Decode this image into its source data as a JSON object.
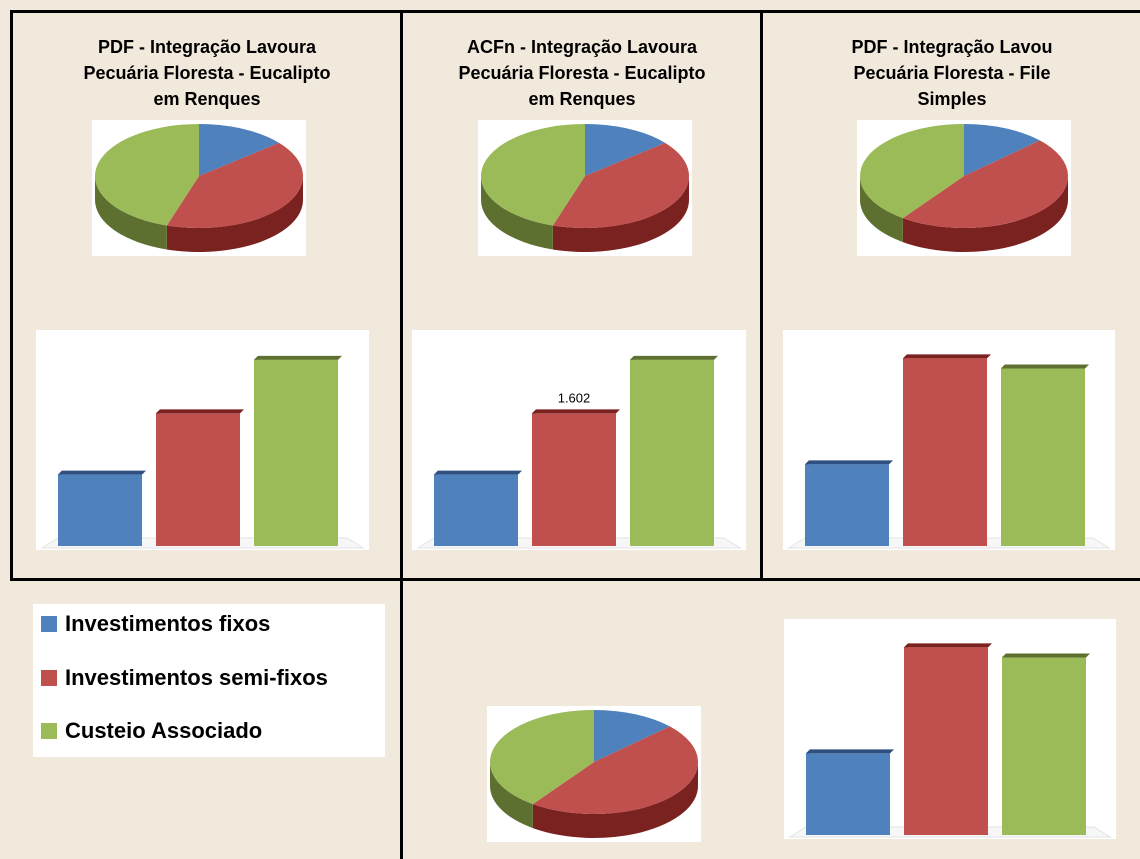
{
  "colors": {
    "blue": "#4f81bd",
    "blue_dark": "#2f4f7f",
    "red": "#c0504d",
    "red_dark": "#7a2220",
    "green": "#9bbb59",
    "green_dark": "#5d7030"
  },
  "legend": {
    "items": [
      {
        "label": "Investimentos fixos",
        "color": "#4f81bd"
      },
      {
        "label": "Investimentos semi-fixos",
        "color": "#c0504d"
      },
      {
        "label": "Custeio Associado",
        "color": "#9bbb59"
      }
    ]
  },
  "panels": [
    {
      "title_lines": [
        "PDF - Integração Lavoura",
        "Pecuária Floresta - Eucalipto",
        "em Renques"
      ]
    },
    {
      "title_lines": [
        "ACFn - Integração Lavoura",
        "Pecuária Floresta - Eucalipto",
        "em Renques"
      ]
    },
    {
      "title_lines": [
        "PDF - Integração Lavou",
        "Pecuária Floresta - File",
        "Simples"
      ]
    }
  ],
  "chart_data": [
    {
      "type": "pie",
      "panel": "pdf-renques",
      "series": [
        "Investimentos fixos",
        "Investimentos semi-fixos",
        "Custeio Associado"
      ],
      "values": [
        14,
        41,
        45
      ]
    },
    {
      "type": "bar",
      "panel": "pdf-renques",
      "categories": [
        "Investimentos fixos",
        "Investimentos semi-fixos",
        "Custeio Associado"
      ],
      "values": [
        28,
        52,
        73
      ],
      "ylim": [
        0,
        80
      ]
    },
    {
      "type": "pie",
      "panel": "acfn-renques",
      "series": [
        "Investimentos fixos",
        "Investimentos semi-fixos",
        "Custeio Associado"
      ],
      "values": [
        14,
        41,
        45
      ]
    },
    {
      "type": "bar",
      "panel": "acfn-renques",
      "categories": [
        "Investimentos fixos",
        "Investimentos semi-fixos",
        "Custeio Associado"
      ],
      "values": [
        28,
        52,
        73
      ],
      "ylim": [
        0,
        80
      ],
      "data_labels": [
        "",
        "1.602",
        ""
      ]
    },
    {
      "type": "pie",
      "panel": "pdf-file-simples",
      "series": [
        "Investimentos fixos",
        "Investimentos semi-fixos",
        "Custeio Associado"
      ],
      "values": [
        13,
        47,
        40
      ]
    },
    {
      "type": "bar",
      "panel": "pdf-file-simples",
      "categories": [
        "Investimentos fixos",
        "Investimentos semi-fixos",
        "Custeio Associado"
      ],
      "values": [
        40,
        92,
        87
      ],
      "ylim": [
        0,
        100
      ]
    },
    {
      "type": "pie",
      "panel": "bottom-center",
      "series": [
        "Investimentos fixos",
        "Investimentos semi-fixos",
        "Custeio Associado"
      ],
      "values": [
        13,
        47,
        40
      ]
    },
    {
      "type": "bar",
      "panel": "bottom-right",
      "categories": [
        "Investimentos fixos",
        "Investimentos semi-fixos",
        "Custeio Associado"
      ],
      "values": [
        40,
        92,
        87
      ],
      "ylim": [
        0,
        100
      ]
    }
  ]
}
